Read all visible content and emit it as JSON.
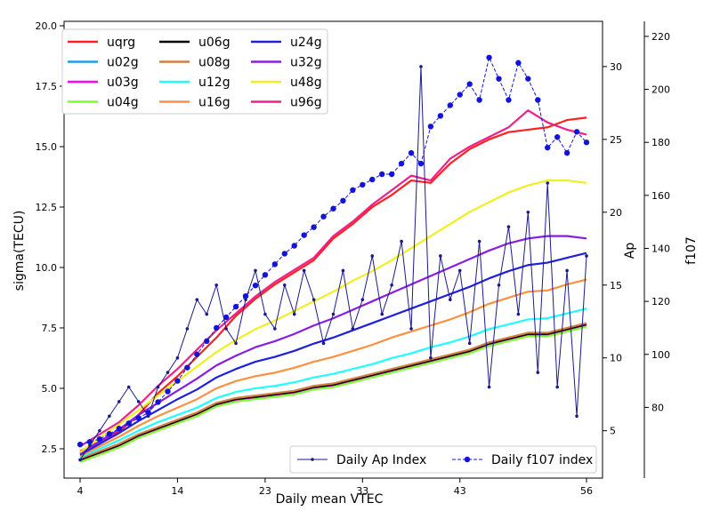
{
  "chart_data": {
    "type": "line",
    "xlabel": "Daily mean VTEC",
    "ylabel": "sigma(TECU)",
    "y2label": "Ap",
    "y3label": "f107",
    "x_ticks": [
      "4",
      "14",
      "23",
      "33",
      "43",
      "56"
    ],
    "y_ticks": [
      "2.5",
      "5.0",
      "7.5",
      "10.0",
      "12.5",
      "15.0",
      "17.5",
      "20.0"
    ],
    "ap_ticks": [
      "5",
      "10",
      "15",
      "20",
      "25",
      "30"
    ],
    "f107_ticks": [
      "80",
      "100",
      "120",
      "140",
      "160",
      "180",
      "200",
      "220"
    ],
    "xlim": [
      4,
      56
    ],
    "ylim": [
      1.8,
      20.0
    ],
    "ap_lim": [
      2.6,
      32.8
    ],
    "f107_lim": [
      58,
      224
    ],
    "legend_location": "upper-left",
    "legend2_location": "lower-right",
    "series_colors": {
      "uqrg": "#ff2020",
      "u02g": "#1f9ee8",
      "u03g": "#ff00ff",
      "u04g": "#7cff30",
      "u06g": "#000000",
      "u08g": "#d08040",
      "u12g": "#20ffff",
      "u16g": "#ff9040",
      "u24g": "#2020d8",
      "u32g": "#8a1ee0",
      "u48g": "#f0f020",
      "u96g": "#f0208a"
    },
    "sigma_series": [
      {
        "name": "uqrg",
        "x": [
          4,
          6,
          8,
          10,
          12,
          14,
          16,
          18,
          20,
          22,
          24,
          26,
          28,
          30,
          32,
          34,
          36,
          38,
          40,
          42,
          44,
          46,
          48,
          50,
          52,
          54,
          56
        ],
        "values": [
          2.4,
          2.8,
          3.2,
          3.9,
          4.8,
          5.5,
          6.3,
          7.1,
          8.0,
          8.7,
          9.3,
          9.8,
          10.3,
          11.2,
          11.8,
          12.5,
          13.0,
          13.6,
          13.5,
          14.3,
          14.9,
          15.3,
          15.6,
          15.7,
          15.8,
          16.1,
          16.2
        ]
      },
      {
        "name": "u02g",
        "x": [
          4,
          6,
          8,
          10,
          12,
          14,
          16,
          18,
          20,
          22,
          24,
          26,
          28,
          30,
          32,
          34,
          36,
          38,
          40,
          42,
          44,
          46,
          48,
          50,
          52,
          54,
          56
        ],
        "values": [
          2.0,
          2.3,
          2.6,
          3.0,
          3.3,
          3.6,
          3.9,
          4.3,
          4.5,
          4.6,
          4.7,
          4.8,
          5.0,
          5.1,
          5.3,
          5.5,
          5.7,
          5.9,
          6.1,
          6.3,
          6.5,
          6.8,
          7.0,
          7.2,
          7.2,
          7.4,
          7.6
        ]
      },
      {
        "name": "u03g",
        "x": [
          4,
          6,
          8,
          10,
          12,
          14,
          16,
          18,
          20,
          22,
          24,
          26,
          28,
          30,
          32,
          34,
          36,
          38,
          40,
          42,
          44,
          46,
          48,
          50,
          52,
          54,
          56
        ],
        "values": [
          2.0,
          2.3,
          2.6,
          3.0,
          3.3,
          3.6,
          3.9,
          4.3,
          4.5,
          4.6,
          4.7,
          4.8,
          5.0,
          5.1,
          5.3,
          5.5,
          5.7,
          5.9,
          6.1,
          6.3,
          6.5,
          6.8,
          7.0,
          7.2,
          7.2,
          7.4,
          7.6
        ]
      },
      {
        "name": "u04g",
        "x": [
          4,
          6,
          8,
          10,
          12,
          14,
          16,
          18,
          20,
          22,
          24,
          26,
          28,
          30,
          32,
          34,
          36,
          38,
          40,
          42,
          44,
          46,
          48,
          50,
          52,
          54,
          56
        ],
        "values": [
          1.95,
          2.25,
          2.55,
          2.95,
          3.25,
          3.55,
          3.85,
          4.25,
          4.45,
          4.55,
          4.65,
          4.75,
          4.95,
          5.05,
          5.25,
          5.45,
          5.65,
          5.85,
          6.05,
          6.25,
          6.45,
          6.75,
          6.95,
          7.15,
          7.15,
          7.35,
          7.55
        ]
      },
      {
        "name": "u06g",
        "x": [
          4,
          6,
          8,
          10,
          12,
          14,
          16,
          18,
          20,
          22,
          24,
          26,
          28,
          30,
          32,
          34,
          36,
          38,
          40,
          42,
          44,
          46,
          48,
          50,
          52,
          54,
          56
        ],
        "values": [
          2.05,
          2.35,
          2.65,
          3.05,
          3.35,
          3.65,
          3.95,
          4.35,
          4.55,
          4.65,
          4.75,
          4.85,
          5.05,
          5.15,
          5.35,
          5.55,
          5.75,
          5.95,
          6.15,
          6.35,
          6.55,
          6.85,
          7.05,
          7.25,
          7.25,
          7.45,
          7.65
        ]
      },
      {
        "name": "u08g",
        "x": [
          4,
          6,
          8,
          10,
          12,
          14,
          16,
          18,
          20,
          22,
          24,
          26,
          28,
          30,
          32,
          34,
          36,
          38,
          40,
          42,
          44,
          46,
          48,
          50,
          52,
          54,
          56
        ],
        "values": [
          2.1,
          2.4,
          2.7,
          3.1,
          3.4,
          3.7,
          4.0,
          4.4,
          4.6,
          4.7,
          4.8,
          4.9,
          5.1,
          5.2,
          5.4,
          5.6,
          5.8,
          6.0,
          6.2,
          6.4,
          6.6,
          6.9,
          7.1,
          7.3,
          7.3,
          7.5,
          7.7
        ]
      },
      {
        "name": "u12g",
        "x": [
          4,
          6,
          8,
          10,
          12,
          14,
          16,
          18,
          20,
          22,
          24,
          26,
          28,
          30,
          32,
          34,
          36,
          38,
          40,
          42,
          44,
          46,
          48,
          50,
          52,
          54,
          56
        ],
        "values": [
          2.15,
          2.5,
          2.85,
          3.25,
          3.6,
          3.9,
          4.2,
          4.6,
          4.85,
          5.0,
          5.1,
          5.25,
          5.45,
          5.6,
          5.8,
          6.0,
          6.25,
          6.45,
          6.7,
          6.9,
          7.15,
          7.45,
          7.65,
          7.85,
          7.9,
          8.1,
          8.3
        ]
      },
      {
        "name": "u16g",
        "x": [
          4,
          6,
          8,
          10,
          12,
          14,
          16,
          18,
          20,
          22,
          24,
          26,
          28,
          30,
          32,
          34,
          36,
          38,
          40,
          42,
          44,
          46,
          48,
          50,
          52,
          54,
          56
        ],
        "values": [
          2.2,
          2.6,
          3.0,
          3.45,
          3.85,
          4.2,
          4.55,
          5.0,
          5.3,
          5.5,
          5.65,
          5.85,
          6.1,
          6.3,
          6.55,
          6.8,
          7.1,
          7.35,
          7.6,
          7.85,
          8.15,
          8.5,
          8.75,
          9.0,
          9.05,
          9.3,
          9.5
        ]
      },
      {
        "name": "u24g",
        "x": [
          4,
          6,
          8,
          10,
          12,
          14,
          16,
          18,
          20,
          22,
          24,
          26,
          28,
          30,
          32,
          34,
          36,
          38,
          40,
          42,
          44,
          46,
          48,
          50,
          52,
          54,
          56
        ],
        "values": [
          2.25,
          2.7,
          3.15,
          3.65,
          4.1,
          4.55,
          4.95,
          5.45,
          5.8,
          6.1,
          6.3,
          6.55,
          6.85,
          7.1,
          7.4,
          7.7,
          8.0,
          8.3,
          8.6,
          8.9,
          9.2,
          9.55,
          9.85,
          10.1,
          10.2,
          10.4,
          10.6
        ]
      },
      {
        "name": "u32g",
        "x": [
          4,
          6,
          8,
          10,
          12,
          14,
          16,
          18,
          20,
          22,
          24,
          26,
          28,
          30,
          32,
          34,
          36,
          38,
          40,
          42,
          44,
          46,
          48,
          50,
          52,
          54,
          56
        ],
        "values": [
          2.3,
          2.8,
          3.3,
          3.9,
          4.4,
          4.9,
          5.4,
          5.95,
          6.35,
          6.7,
          6.95,
          7.25,
          7.6,
          7.9,
          8.25,
          8.6,
          8.95,
          9.3,
          9.65,
          10.0,
          10.35,
          10.7,
          11.0,
          11.2,
          11.3,
          11.3,
          11.2
        ]
      },
      {
        "name": "u48g",
        "x": [
          4,
          6,
          8,
          10,
          12,
          14,
          16,
          18,
          20,
          22,
          24,
          26,
          28,
          30,
          32,
          34,
          36,
          38,
          40,
          42,
          44,
          46,
          48,
          50,
          52,
          54,
          56
        ],
        "values": [
          2.35,
          2.95,
          3.5,
          4.1,
          4.7,
          5.3,
          5.9,
          6.5,
          7.0,
          7.45,
          7.8,
          8.2,
          8.6,
          9.0,
          9.45,
          9.85,
          10.3,
          10.8,
          11.3,
          11.8,
          12.3,
          12.7,
          13.1,
          13.4,
          13.6,
          13.6,
          13.5
        ]
      },
      {
        "name": "u96g",
        "x": [
          4,
          6,
          8,
          10,
          12,
          14,
          16,
          18,
          20,
          22,
          24,
          26,
          28,
          30,
          32,
          34,
          36,
          38,
          40,
          42,
          44,
          46,
          48,
          50,
          52,
          54,
          56
        ],
        "values": [
          2.6,
          3.1,
          3.6,
          4.3,
          5.1,
          5.8,
          6.6,
          7.4,
          8.1,
          8.8,
          9.4,
          9.9,
          10.4,
          11.3,
          11.9,
          12.6,
          13.2,
          13.8,
          13.6,
          14.5,
          15.0,
          15.4,
          15.8,
          16.5,
          16.0,
          15.7,
          15.5
        ]
      }
    ],
    "ap_series": {
      "name": "Daily Ap Index",
      "color": "#1a1a8c",
      "x": [
        4,
        5,
        6,
        7,
        8,
        9,
        10,
        11,
        12,
        13,
        14,
        15,
        16,
        17,
        18,
        19,
        20,
        21,
        22,
        23,
        24,
        25,
        26,
        27,
        28,
        29,
        30,
        31,
        32,
        33,
        34,
        35,
        36,
        37,
        38,
        39,
        40,
        41,
        42,
        43,
        44,
        45,
        46,
        47,
        48,
        49,
        50,
        51,
        52,
        53,
        54,
        55,
        56
      ],
      "values": [
        3,
        4,
        5,
        6,
        7,
        8,
        7,
        6,
        8,
        9,
        10,
        12,
        14,
        13,
        15,
        12,
        11,
        14,
        16,
        13,
        12,
        15,
        13,
        16,
        14,
        11,
        13,
        16,
        12,
        14,
        17,
        13,
        15,
        18,
        12,
        30,
        10,
        17,
        14,
        16,
        11,
        18,
        8,
        15,
        19,
        13,
        20,
        9,
        22,
        8,
        16,
        6,
        17
      ]
    },
    "f107_series": {
      "name": "Daily f107 index",
      "color": "#1414d8",
      "x": [
        4,
        5,
        6,
        7,
        8,
        9,
        10,
        11,
        12,
        13,
        14,
        15,
        16,
        17,
        18,
        19,
        20,
        21,
        22,
        23,
        24,
        25,
        26,
        27,
        28,
        29,
        30,
        31,
        32,
        33,
        34,
        35,
        36,
        37,
        38,
        39,
        40,
        41,
        42,
        43,
        44,
        45,
        46,
        47,
        48,
        49,
        50,
        51,
        52,
        53,
        54,
        55,
        56
      ],
      "values": [
        66,
        67,
        68,
        70,
        72,
        74,
        76,
        78,
        82,
        86,
        90,
        95,
        100,
        105,
        110,
        114,
        118,
        122,
        126,
        130,
        134,
        138,
        141,
        145,
        148,
        152,
        155,
        158,
        162,
        164,
        166,
        168,
        168,
        172,
        176,
        172,
        186,
        190,
        194,
        198,
        202,
        196,
        212,
        204,
        196,
        210,
        204,
        196,
        178,
        182,
        176,
        184,
        180
      ]
    },
    "legend_series": [
      "uqrg",
      "u06g",
      "u24g",
      "u02g",
      "u08g",
      "u32g",
      "u03g",
      "u12g",
      "u48g",
      "u04g",
      "u16g",
      "u96g"
    ],
    "legend2_series": [
      "Daily Ap Index",
      "Daily f107 index"
    ]
  }
}
